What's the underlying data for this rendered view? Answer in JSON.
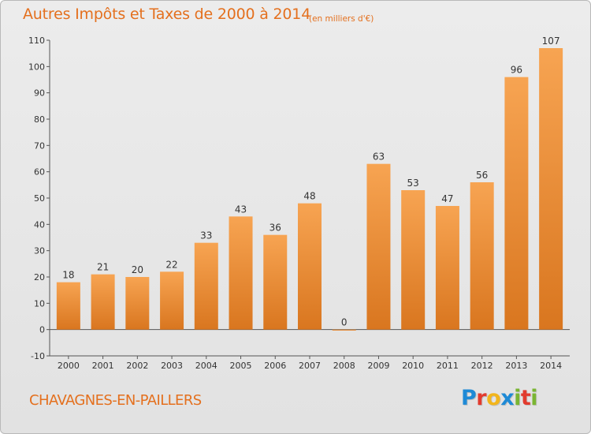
{
  "chart_data": {
    "type": "bar",
    "title": "Autres Impôts et Taxes de 2000 à 2014",
    "subtitle": "(en milliers d'€)",
    "categories": [
      "2000",
      "2001",
      "2002",
      "2003",
      "2004",
      "2005",
      "2006",
      "2007",
      "2008",
      "2009",
      "2010",
      "2011",
      "2012",
      "2013",
      "2014"
    ],
    "values": [
      18,
      21,
      20,
      22,
      33,
      43,
      36,
      48,
      0,
      63,
      53,
      47,
      56,
      96,
      107
    ],
    "value_labels": [
      "18",
      "21",
      "20",
      "22",
      "33",
      "43",
      "36",
      "48",
      "0",
      "63",
      "53",
      "47",
      "56",
      "96",
      "107"
    ],
    "ylim": [
      -10,
      110
    ],
    "yticks": [
      -10,
      0,
      10,
      20,
      30,
      40,
      50,
      60,
      70,
      80,
      90,
      100,
      110
    ],
    "ytick_labels": [
      "-10",
      "0",
      "10",
      "20",
      "30",
      "40",
      "50",
      "60",
      "70",
      "80",
      "90",
      "100",
      "110"
    ],
    "bar_color_top": "#f7a452",
    "bar_color_bottom": "#d9761f",
    "grid": false,
    "legend": "none"
  },
  "footer": {
    "commune": "CHAVAGNES-EN-PAILLERS",
    "brand_letters": [
      {
        "char": "P",
        "color": "#1e8ad6"
      },
      {
        "char": "r",
        "color": "#e23b2e"
      },
      {
        "char": "o",
        "color": "#f2b51c"
      },
      {
        "char": "x",
        "color": "#1e8ad6"
      },
      {
        "char": "i",
        "color": "#7ab532"
      },
      {
        "char": "t",
        "color": "#e23b2e"
      },
      {
        "char": "i",
        "color": "#7ab532"
      }
    ]
  },
  "colors": {
    "title": "#e4701e",
    "background": "#e8e8e8"
  }
}
